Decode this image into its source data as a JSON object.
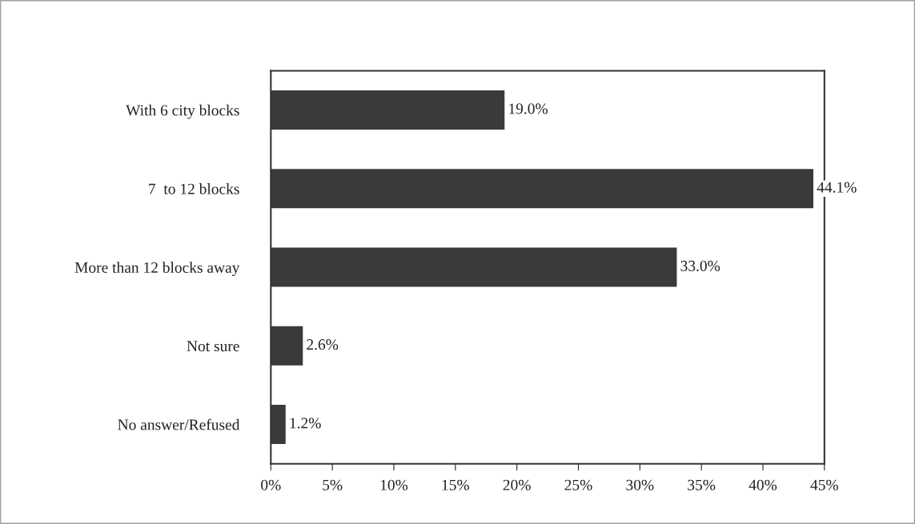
{
  "chart_data": {
    "type": "bar",
    "orientation": "horizontal",
    "categories": [
      "With 6 city blocks",
      "7  to 12 blocks",
      "More than 12 blocks away",
      "Not sure",
      "No answer/Refused"
    ],
    "values": [
      19.0,
      44.1,
      33.0,
      2.6,
      1.2
    ],
    "value_labels": [
      "19.0%",
      "44.1%",
      "33.0%",
      "2.6%",
      "1.2%"
    ],
    "color": "#3a3a3a",
    "xlim": [
      0,
      45
    ],
    "xticks": [
      {
        "value": 0,
        "label": "0%"
      },
      {
        "value": 5,
        "label": "5%"
      },
      {
        "value": 10,
        "label": "10%"
      },
      {
        "value": 15,
        "label": "15%"
      },
      {
        "value": 20,
        "label": "20%"
      },
      {
        "value": 25,
        "label": "25%"
      },
      {
        "value": 30,
        "label": "30%"
      },
      {
        "value": 35,
        "label": "35%"
      },
      {
        "value": 40,
        "label": "40%"
      },
      {
        "value": 45,
        "label": "45%"
      }
    ]
  }
}
